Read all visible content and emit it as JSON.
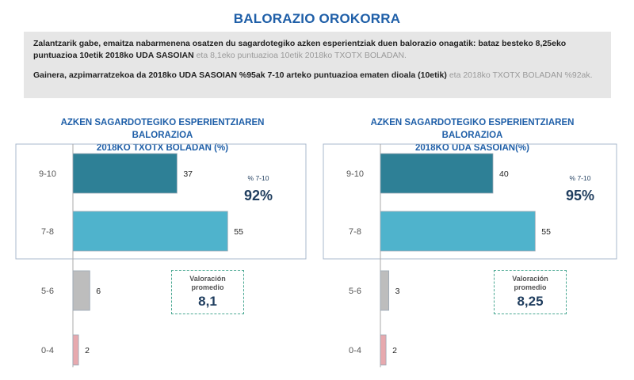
{
  "page": {
    "title": "BALORAZIO OROKORRA",
    "summary": {
      "p1_strong": "Zalantzarik gabe, emaitza nabarmenena osatzen du sagardotegiko azken esperientziak duen balorazio onagatik: bataz besteko 8,25eko puntuazioa 10etik 2018ko UDA SASOIAN",
      "p1_muted": "eta 8,1eko puntuazioa 10etik 2018ko TXOTX BOLADAN.",
      "p2_strong": "Gainera, azpimarratzekoa da 2018ko UDA SASOIAN %95ak 7-10 arteko puntuazioa ematen dioala (10etik)",
      "p2_muted": "eta 2018ko TXOTX BOLADAN %92ak."
    }
  },
  "colors": {
    "c910": "#2e8096",
    "c78": "#4fb3cc",
    "c56": "#bdbdbd",
    "c04": "#e7a9ae"
  },
  "chart_data": [
    {
      "type": "bar",
      "orientation": "horizontal",
      "title_line1": "AZKEN SAGARDOTEGIKO ESPERIENTZIAREN BALORAZIOA",
      "title_line2": "2018KO TXOTX BOLADAN (%)",
      "categories": [
        "9-10",
        "7-8",
        "5-6",
        "0-4"
      ],
      "values": [
        37,
        55,
        6,
        2
      ],
      "xlim": [
        0,
        100
      ],
      "highlight": {
        "label": "% 7-10",
        "value": "92%"
      },
      "average": {
        "label_line1": "Valoración",
        "label_line2": "promedio",
        "value": "8,1"
      }
    },
    {
      "type": "bar",
      "orientation": "horizontal",
      "title_line1": "AZKEN SAGARDOTEGIKO ESPERIENTZIAREN BALORAZIOA",
      "title_line2": "2018KO UDA SASOIAN(%)",
      "categories": [
        "9-10",
        "7-8",
        "5-6",
        "0-4"
      ],
      "values": [
        40,
        55,
        3,
        2
      ],
      "xlim": [
        0,
        100
      ],
      "highlight": {
        "label": "% 7-10",
        "value": "95%"
      },
      "average": {
        "label_line1": "Valoración",
        "label_line2": "promedio",
        "value": "8,25"
      }
    }
  ]
}
